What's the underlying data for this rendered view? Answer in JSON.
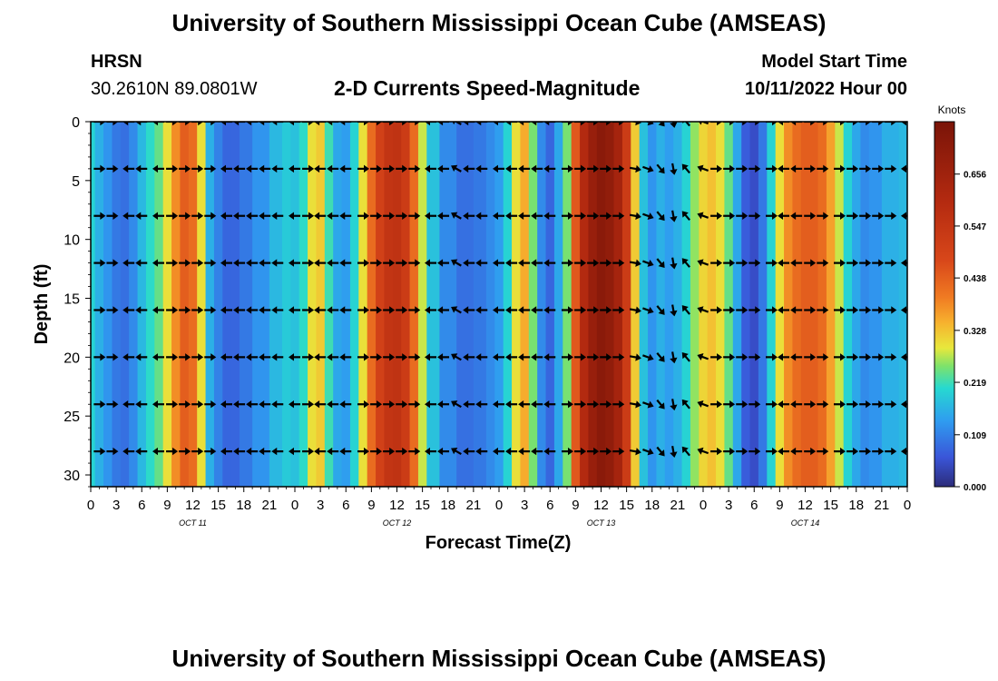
{
  "page": {
    "title": "University of Southern Mississippi Ocean Cube (AMSEAS)",
    "footer_title": "University of Southern Mississippi Ocean Cube (AMSEAS)",
    "station": "HRSN",
    "location": "30.2610N  89.0801W",
    "model_start_label": "Model Start Time",
    "model_start_value": "10/11/2022 Hour 00"
  },
  "chart_data": {
    "type": "heatmap",
    "title": "2-D Currents Speed-Magnitude",
    "xlabel": "Forecast Time(Z)",
    "ylabel": "Depth (ft)",
    "x_ticks": [
      "0",
      "3",
      "6",
      "9",
      "12",
      "15",
      "18",
      "21",
      "0",
      "3",
      "6",
      "9",
      "12",
      "15",
      "18",
      "21",
      "0",
      "3",
      "6",
      "9",
      "12",
      "15",
      "18",
      "21",
      "0",
      "3",
      "6",
      "9",
      "12",
      "15",
      "18",
      "21",
      "0"
    ],
    "date_labels": [
      {
        "label": "OCT 11",
        "at_hour": 12
      },
      {
        "label": "OCT 12",
        "at_hour": 36
      },
      {
        "label": "OCT 13",
        "at_hour": 60
      },
      {
        "label": "OCT 14",
        "at_hour": 84
      }
    ],
    "xlim_hours": [
      0,
      96
    ],
    "y_ticks": [
      0,
      5,
      10,
      15,
      20,
      25,
      30
    ],
    "ylim": [
      0,
      31
    ],
    "colorbar": {
      "label": "Knots",
      "ticks": [
        "0.656",
        "0.547",
        "0.438",
        "0.328",
        "0.219",
        "0.109",
        "0.000"
      ],
      "range": [
        0,
        0.766
      ]
    },
    "depths_ft": [
      0,
      4,
      8,
      12,
      16,
      20,
      24,
      28
    ],
    "speed_profile": [
      {
        "hour": 0,
        "v": 0.2
      },
      {
        "hour": 1,
        "v": 0.16
      },
      {
        "hour": 2,
        "v": 0.13
      },
      {
        "hour": 3,
        "v": 0.1
      },
      {
        "hour": 4,
        "v": 0.09
      },
      {
        "hour": 5,
        "v": 0.12
      },
      {
        "hour": 6,
        "v": 0.17
      },
      {
        "hour": 7,
        "v": 0.21
      },
      {
        "hour": 8,
        "v": 0.24
      },
      {
        "hour": 9,
        "v": 0.3
      },
      {
        "hour": 10,
        "v": 0.38
      },
      {
        "hour": 11,
        "v": 0.44
      },
      {
        "hour": 12,
        "v": 0.42
      },
      {
        "hour": 13,
        "v": 0.3
      },
      {
        "hour": 14,
        "v": 0.16
      },
      {
        "hour": 15,
        "v": 0.11
      },
      {
        "hour": 16,
        "v": 0.08
      },
      {
        "hour": 17,
        "v": 0.08
      },
      {
        "hour": 18,
        "v": 0.1
      },
      {
        "hour": 20,
        "v": 0.13
      },
      {
        "hour": 22,
        "v": 0.17
      },
      {
        "hour": 23,
        "v": 0.19
      },
      {
        "hour": 24,
        "v": 0.18
      },
      {
        "hour": 25,
        "v": 0.21
      },
      {
        "hour": 26,
        "v": 0.3
      },
      {
        "hour": 27,
        "v": 0.32
      },
      {
        "hour": 28,
        "v": 0.22
      },
      {
        "hour": 29,
        "v": 0.15
      },
      {
        "hour": 30,
        "v": 0.14
      },
      {
        "hour": 31,
        "v": 0.2
      },
      {
        "hour": 32,
        "v": 0.3
      },
      {
        "hour": 33,
        "v": 0.42
      },
      {
        "hour": 34,
        "v": 0.5
      },
      {
        "hour": 35,
        "v": 0.55
      },
      {
        "hour": 36,
        "v": 0.56
      },
      {
        "hour": 37,
        "v": 0.52
      },
      {
        "hour": 38,
        "v": 0.42
      },
      {
        "hour": 39,
        "v": 0.28
      },
      {
        "hour": 40,
        "v": 0.18
      },
      {
        "hour": 42,
        "v": 0.12
      },
      {
        "hour": 44,
        "v": 0.09
      },
      {
        "hour": 46,
        "v": 0.1
      },
      {
        "hour": 47,
        "v": 0.12
      },
      {
        "hour": 48,
        "v": 0.14
      },
      {
        "hour": 49,
        "v": 0.2
      },
      {
        "hour": 50,
        "v": 0.3
      },
      {
        "hour": 51,
        "v": 0.35
      },
      {
        "hour": 52,
        "v": 0.25
      },
      {
        "hour": 53,
        "v": 0.12
      },
      {
        "hour": 54,
        "v": 0.08
      },
      {
        "hour": 55,
        "v": 0.15
      },
      {
        "hour": 56,
        "v": 0.25
      },
      {
        "hour": 57,
        "v": 0.45
      },
      {
        "hour": 58,
        "v": 0.6
      },
      {
        "hour": 59,
        "v": 0.68
      },
      {
        "hour": 60,
        "v": 0.72
      },
      {
        "hour": 61,
        "v": 0.7
      },
      {
        "hour": 62,
        "v": 0.64
      },
      {
        "hour": 63,
        "v": 0.52
      },
      {
        "hour": 64,
        "v": 0.32
      },
      {
        "hour": 65,
        "v": 0.18
      },
      {
        "hour": 66,
        "v": 0.13
      },
      {
        "hour": 67,
        "v": 0.16
      },
      {
        "hour": 68,
        "v": 0.14
      },
      {
        "hour": 69,
        "v": 0.16
      },
      {
        "hour": 70,
        "v": 0.2
      },
      {
        "hour": 71,
        "v": 0.26
      },
      {
        "hour": 72,
        "v": 0.31
      },
      {
        "hour": 73,
        "v": 0.33
      },
      {
        "hour": 74,
        "v": 0.3
      },
      {
        "hour": 75,
        "v": 0.24
      },
      {
        "hour": 76,
        "v": 0.15
      },
      {
        "hour": 77,
        "v": 0.07
      },
      {
        "hour": 78,
        "v": 0.05
      },
      {
        "hour": 79,
        "v": 0.1
      },
      {
        "hour": 80,
        "v": 0.2
      },
      {
        "hour": 81,
        "v": 0.3
      },
      {
        "hour": 82,
        "v": 0.38
      },
      {
        "hour": 83,
        "v": 0.42
      },
      {
        "hour": 84,
        "v": 0.44
      },
      {
        "hour": 85,
        "v": 0.44
      },
      {
        "hour": 86,
        "v": 0.42
      },
      {
        "hour": 87,
        "v": 0.36
      },
      {
        "hour": 88,
        "v": 0.28
      },
      {
        "hour": 89,
        "v": 0.2
      },
      {
        "hour": 90,
        "v": 0.15
      },
      {
        "hour": 91,
        "v": 0.12
      },
      {
        "hour": 92,
        "v": 0.13
      },
      {
        "hour": 94,
        "v": 0.16
      },
      {
        "hour": 96,
        "v": 0.17
      }
    ],
    "vector_hours": [
      1,
      2.5,
      4.5,
      6,
      8,
      9.5,
      11,
      12.5,
      14,
      16,
      17.5,
      19,
      20.5,
      22,
      24,
      25.5,
      27,
      28.5,
      30,
      32,
      33.5,
      35,
      36.5,
      38,
      40,
      41.5,
      43,
      44.5,
      46,
      48,
      49.5,
      51,
      52.5,
      54,
      56,
      57.5,
      59,
      60.5,
      62,
      64,
      65.5,
      67,
      68.5,
      70,
      72,
      73.5,
      75,
      76.5,
      78,
      80,
      81.5,
      83,
      84.5,
      86,
      88,
      89.5,
      91,
      92.5,
      94,
      96
    ],
    "vector_direction_deg": [
      0,
      0,
      180,
      180,
      180,
      0,
      0,
      0,
      0,
      180,
      180,
      180,
      180,
      180,
      180,
      0,
      180,
      180,
      180,
      0,
      0,
      0,
      0,
      0,
      180,
      180,
      210,
      180,
      180,
      180,
      180,
      180,
      180,
      180,
      0,
      0,
      0,
      0,
      0,
      10,
      20,
      50,
      80,
      230,
      200,
      0,
      0,
      0,
      0,
      0,
      180,
      180,
      0,
      0,
      0,
      0,
      0,
      0,
      0,
      180
    ]
  }
}
